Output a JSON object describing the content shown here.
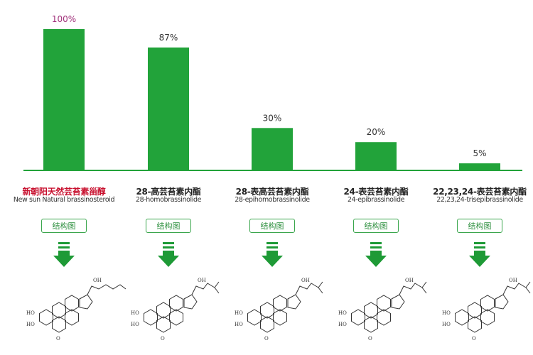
{
  "chart_data": {
    "type": "bar",
    "categories": [
      "新朝阳天然芸苔素甾醇",
      "28-高芸苔素内酯",
      "28-表高芸苔素内酯",
      "24-表芸苔素内酯",
      "22,23,24-表芸苔素内酯"
    ],
    "subcategories": [
      "New sun Natural brassinosteroid",
      "28-homobrassinolide",
      "28-epihomobrassinolide",
      "24-epibrassinolide",
      "22,23,24-trisepibrassinolide"
    ],
    "values": [
      100,
      87,
      30,
      20,
      5
    ],
    "data_labels": [
      "100%",
      "87%",
      "30%",
      "20%",
      "5%"
    ],
    "ylim": [
      0,
      100
    ],
    "grid": false,
    "title": "",
    "xlabel": "",
    "ylabel": ""
  },
  "structure_button_label": "结构图",
  "structure_labels": {
    "ho": "HO",
    "oh": "OH",
    "o": "O",
    "h": "H"
  },
  "colors": {
    "bar": "#22a33a",
    "axis": "#22a33a",
    "highlight_label": "#a0307a",
    "highlight_name": "#c8102e",
    "arrow": "#1e9a36"
  }
}
